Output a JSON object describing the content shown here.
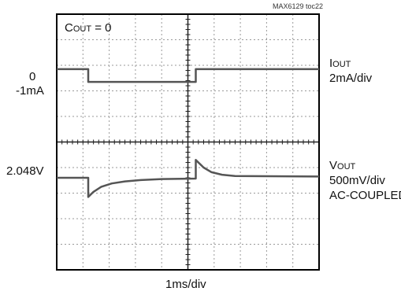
{
  "chart_data": {
    "type": "line",
    "figure_id": "MAX6129 toc22",
    "condition": {
      "prefix": "C",
      "sub": "OUT",
      "suffix": " = 0"
    },
    "x_label": "1ms/div",
    "x_unit_ms": [
      0,
      10
    ],
    "divisions": {
      "x": 10,
      "y": 10
    },
    "series": [
      {
        "name_prefix": "I",
        "name_sub": "OUT",
        "scale": "2mA/div",
        "level_labels": [
          "0",
          "-1mA"
        ],
        "div_points": [
          [
            0,
            7.85
          ],
          [
            1.2,
            7.85
          ],
          [
            1.2,
            7.35
          ],
          [
            5.3,
            7.35
          ],
          [
            5.3,
            7.85
          ],
          [
            10,
            7.85
          ]
        ]
      },
      {
        "name_prefix": "V",
        "name_sub": "OUT",
        "scale": "500mV/div",
        "coupling": "AC-COUPLED",
        "level_labels": [
          "2.048V"
        ],
        "div_points": [
          [
            0,
            3.6
          ],
          [
            1.2,
            3.6
          ],
          [
            1.2,
            2.85
          ],
          [
            1.4,
            3.05
          ],
          [
            1.7,
            3.25
          ],
          [
            2.1,
            3.38
          ],
          [
            2.6,
            3.46
          ],
          [
            3.2,
            3.51
          ],
          [
            4.0,
            3.55
          ],
          [
            5.3,
            3.57
          ],
          [
            5.3,
            4.3
          ],
          [
            5.6,
            4.0
          ],
          [
            5.9,
            3.82
          ],
          [
            6.3,
            3.72
          ],
          [
            6.8,
            3.67
          ],
          [
            10,
            3.65
          ]
        ]
      }
    ]
  }
}
